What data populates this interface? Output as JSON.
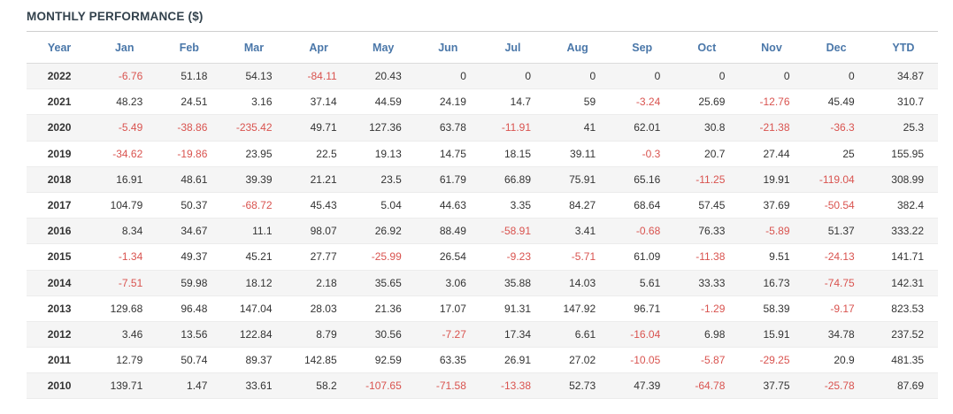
{
  "title": "MONTHLY PERFORMANCE ($)",
  "colors": {
    "header_text": "#4a77a9",
    "negative_value": "#d9534f",
    "positive_value": "#333333",
    "stripe": "#f5f5f5",
    "title_text": "#33424d"
  },
  "chart_data": {
    "type": "table",
    "title": "MONTHLY PERFORMANCE ($)",
    "columns": [
      "Year",
      "Jan",
      "Feb",
      "Mar",
      "Apr",
      "May",
      "Jun",
      "Jul",
      "Aug",
      "Sep",
      "Oct",
      "Nov",
      "Dec",
      "YTD"
    ],
    "rows": [
      {
        "year": "2022",
        "values": [
          "-6.76",
          "51.18",
          "54.13",
          "-84.11",
          "20.43",
          "0",
          "0",
          "0",
          "0",
          "0",
          "0",
          "0",
          "34.87"
        ]
      },
      {
        "year": "2021",
        "values": [
          "48.23",
          "24.51",
          "3.16",
          "37.14",
          "44.59",
          "24.19",
          "14.7",
          "59",
          "-3.24",
          "25.69",
          "-12.76",
          "45.49",
          "310.7"
        ]
      },
      {
        "year": "2020",
        "values": [
          "-5.49",
          "-38.86",
          "-235.42",
          "49.71",
          "127.36",
          "63.78",
          "-11.91",
          "41",
          "62.01",
          "30.8",
          "-21.38",
          "-36.3",
          "25.3"
        ]
      },
      {
        "year": "2019",
        "values": [
          "-34.62",
          "-19.86",
          "23.95",
          "22.5",
          "19.13",
          "14.75",
          "18.15",
          "39.11",
          "-0.3",
          "20.7",
          "27.44",
          "25",
          "155.95"
        ]
      },
      {
        "year": "2018",
        "values": [
          "16.91",
          "48.61",
          "39.39",
          "21.21",
          "23.5",
          "61.79",
          "66.89",
          "75.91",
          "65.16",
          "-11.25",
          "19.91",
          "-119.04",
          "308.99"
        ]
      },
      {
        "year": "2017",
        "values": [
          "104.79",
          "50.37",
          "-68.72",
          "45.43",
          "5.04",
          "44.63",
          "3.35",
          "84.27",
          "68.64",
          "57.45",
          "37.69",
          "-50.54",
          "382.4"
        ]
      },
      {
        "year": "2016",
        "values": [
          "8.34",
          "34.67",
          "11.1",
          "98.07",
          "26.92",
          "88.49",
          "-58.91",
          "3.41",
          "-0.68",
          "76.33",
          "-5.89",
          "51.37",
          "333.22"
        ]
      },
      {
        "year": "2015",
        "values": [
          "-1.34",
          "49.37",
          "45.21",
          "27.77",
          "-25.99",
          "26.54",
          "-9.23",
          "-5.71",
          "61.09",
          "-11.38",
          "9.51",
          "-24.13",
          "141.71"
        ]
      },
      {
        "year": "2014",
        "values": [
          "-7.51",
          "59.98",
          "18.12",
          "2.18",
          "35.65",
          "3.06",
          "35.88",
          "14.03",
          "5.61",
          "33.33",
          "16.73",
          "-74.75",
          "142.31"
        ]
      },
      {
        "year": "2013",
        "values": [
          "129.68",
          "96.48",
          "147.04",
          "28.03",
          "21.36",
          "17.07",
          "91.31",
          "147.92",
          "96.71",
          "-1.29",
          "58.39",
          "-9.17",
          "823.53"
        ]
      },
      {
        "year": "2012",
        "values": [
          "3.46",
          "13.56",
          "122.84",
          "8.79",
          "30.56",
          "-7.27",
          "17.34",
          "6.61",
          "-16.04",
          "6.98",
          "15.91",
          "34.78",
          "237.52"
        ]
      },
      {
        "year": "2011",
        "values": [
          "12.79",
          "50.74",
          "89.37",
          "142.85",
          "92.59",
          "63.35",
          "26.91",
          "27.02",
          "-10.05",
          "-5.87",
          "-29.25",
          "20.9",
          "481.35"
        ]
      },
      {
        "year": "2010",
        "values": [
          "139.71",
          "1.47",
          "33.61",
          "58.2",
          "-107.65",
          "-71.58",
          "-13.38",
          "52.73",
          "47.39",
          "-64.78",
          "37.75",
          "-25.78",
          "87.69"
        ]
      }
    ]
  }
}
